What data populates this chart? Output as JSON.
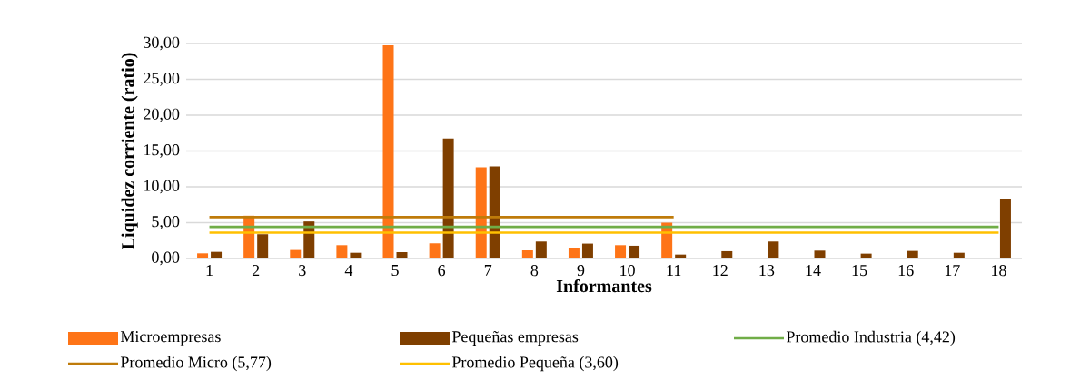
{
  "chart_data": {
    "type": "bar",
    "xlabel": "Informantes",
    "ylabel": "Liquidez corriente (ratio)",
    "categories": [
      "1",
      "2",
      "3",
      "4",
      "5",
      "6",
      "7",
      "8",
      "9",
      "10",
      "11",
      "12",
      "13",
      "14",
      "15",
      "16",
      "17",
      "18"
    ],
    "series": [
      {
        "name": "Microempresas",
        "color": "#fe7417",
        "values": [
          0.72,
          5.97,
          1.19,
          1.86,
          29.75,
          2.12,
          12.71,
          1.14,
          1.48,
          1.86,
          5.0,
          null,
          null,
          null,
          null,
          null,
          null,
          null
        ]
      },
      {
        "name": "Pequeñas empresas",
        "color": "#7f3f00",
        "values": [
          0.93,
          3.39,
          5.17,
          0.8,
          0.89,
          16.74,
          12.84,
          2.37,
          2.08,
          1.78,
          0.55,
          1.02,
          2.37,
          1.1,
          0.68,
          1.06,
          0.8,
          8.35
        ]
      },
      {
        "name": "Promedio Industria (4,42)",
        "type": "line",
        "color": "#70ad47",
        "values": [
          4.42,
          4.42,
          4.42,
          4.42,
          4.42,
          4.42,
          4.42,
          4.42,
          4.42,
          4.42,
          4.42,
          4.42,
          4.42,
          4.42,
          4.42,
          4.42,
          4.42,
          4.42
        ]
      },
      {
        "name": "Promedio Micro (5,77)",
        "type": "line",
        "color": "#bf7b0a",
        "values": [
          5.77,
          5.77,
          5.77,
          5.77,
          5.77,
          5.77,
          5.77,
          5.77,
          5.77,
          5.77,
          5.77,
          null,
          null,
          null,
          null,
          null,
          null,
          null
        ]
      },
      {
        "name": "Promedio Pequeña (3,60)",
        "type": "line",
        "color": "#ffc000",
        "values": [
          3.6,
          3.6,
          3.6,
          3.6,
          3.6,
          3.6,
          3.6,
          3.6,
          3.6,
          3.6,
          3.6,
          3.6,
          3.6,
          3.6,
          3.6,
          3.6,
          3.6,
          3.6
        ]
      }
    ],
    "ylim": [
      0,
      30
    ],
    "yticks": [
      {
        "value": 0,
        "label": "0,00"
      },
      {
        "value": 5,
        "label": "5,00"
      },
      {
        "value": 10,
        "label": "10,00"
      },
      {
        "value": 15,
        "label": "15,00"
      },
      {
        "value": 20,
        "label": "20,00"
      },
      {
        "value": 25,
        "label": "25,00"
      },
      {
        "value": 30,
        "label": "30,00"
      }
    ],
    "grid": "y",
    "legend": "bottom"
  }
}
